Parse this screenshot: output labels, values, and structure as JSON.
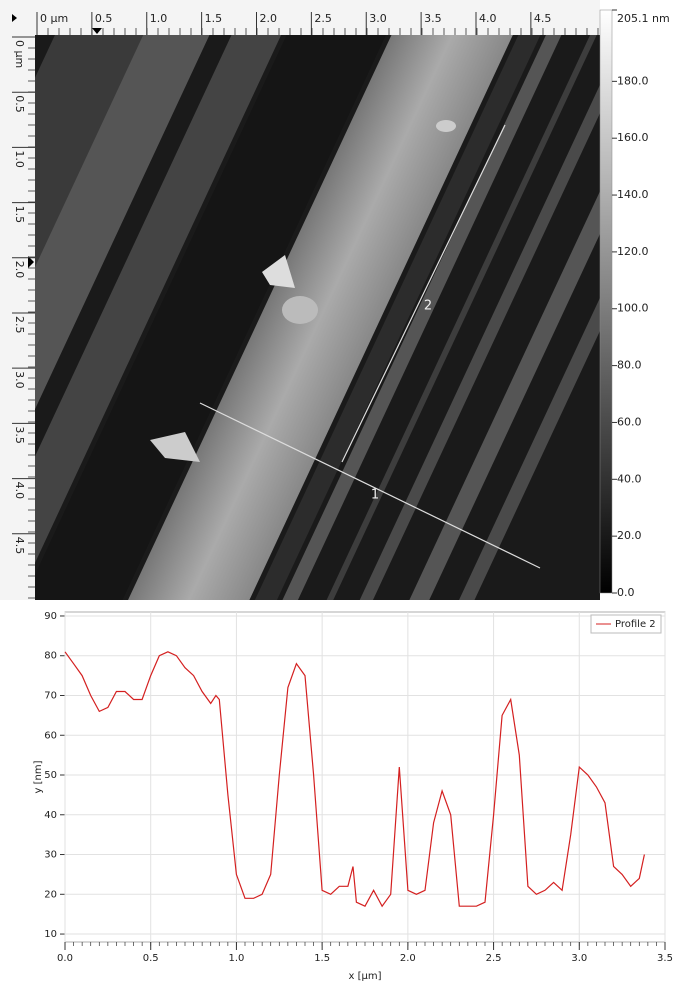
{
  "image": {
    "xlim": [
      0,
      5.13
    ],
    "ylim": [
      0,
      5.1
    ],
    "xticks": [
      {
        "value": 0,
        "label": "0 µm"
      },
      0.5,
      {
        "value": 1,
        "label": "1.0"
      },
      1.5,
      {
        "value": 2,
        "label": "2.0"
      },
      2.5,
      {
        "value": 3,
        "label": "3.0"
      },
      3.5,
      {
        "value": 4,
        "label": "4.0"
      },
      4.5
    ],
    "yticks": [
      {
        "value": 0,
        "label": "0 µm"
      },
      0.5,
      {
        "value": 1,
        "label": "1.0"
      },
      1.5,
      {
        "value": 2,
        "label": "2.0"
      },
      2.5,
      {
        "value": 3,
        "label": "3.0"
      },
      3.5,
      {
        "value": 4,
        "label": "4.0"
      },
      4.5
    ],
    "zlim": [
      0,
      205.1
    ],
    "zticks": [
      {
        "value": 205.1,
        "label": "205.1 nm"
      },
      {
        "value": 180,
        "label": "180.0"
      },
      {
        "value": 160,
        "label": "160.0"
      },
      {
        "value": 140,
        "label": "140.0"
      },
      {
        "value": 120,
        "label": "120.0"
      },
      {
        "value": 100,
        "label": "100.0"
      },
      {
        "value": 80,
        "label": "80.0"
      },
      {
        "value": 60,
        "label": "60.0"
      },
      {
        "value": 40,
        "label": "40.0"
      },
      {
        "value": 20,
        "label": "20.0"
      },
      {
        "value": 0,
        "label": "0.0"
      }
    ],
    "profiles": [
      "1",
      "2"
    ]
  },
  "chart_data": {
    "type": "line",
    "x_label": "x [µm]",
    "y_label": "y [nm]",
    "x": [
      0,
      0.05,
      0.1,
      0.15,
      0.2,
      0.25,
      0.3,
      0.35,
      0.4,
      0.45,
      0.5,
      0.55,
      0.6,
      0.65,
      0.7,
      0.75,
      0.8,
      0.85,
      0.88,
      0.9,
      0.95,
      1.0,
      1.05,
      1.1,
      1.15,
      1.2,
      1.25,
      1.3,
      1.35,
      1.4,
      1.45,
      1.5,
      1.55,
      1.6,
      1.65,
      1.68,
      1.7,
      1.75,
      1.8,
      1.85,
      1.9,
      1.95,
      2.0,
      2.05,
      2.1,
      2.15,
      2.2,
      2.25,
      2.3,
      2.35,
      2.4,
      2.45,
      2.5,
      2.55,
      2.6,
      2.65,
      2.7,
      2.75,
      2.8,
      2.85,
      2.9,
      2.95,
      3.0,
      3.05,
      3.1,
      3.15,
      3.2,
      3.25,
      3.3,
      3.35,
      3.38
    ],
    "series": [
      {
        "name": "Profile 2",
        "color": "#d42020",
        "values": [
          81,
          78,
          75,
          70,
          66,
          67,
          71,
          71,
          69,
          69,
          75,
          80,
          81,
          80,
          77,
          75,
          71,
          68,
          70,
          69,
          45,
          25,
          19,
          19,
          20,
          25,
          50,
          72,
          78,
          75,
          50,
          21,
          20,
          22,
          22,
          27,
          18,
          17,
          21,
          17,
          20,
          52,
          21,
          20,
          21,
          38,
          46,
          40,
          17,
          17,
          17,
          18,
          40,
          65,
          69,
          55,
          22,
          20,
          21,
          23,
          21,
          35,
          52,
          50,
          47,
          43,
          27,
          25,
          22,
          24,
          30
        ]
      }
    ],
    "xlim": [
      0,
      3.5
    ],
    "ylim": [
      8,
      91
    ],
    "xticks": [
      {
        "value": 0,
        "label": "0.0"
      },
      0.5,
      {
        "value": 1,
        "label": "1.0"
      },
      1.5,
      {
        "value": 2,
        "label": "2.0"
      },
      2.5,
      {
        "value": 3,
        "label": "3.0"
      },
      3.5
    ],
    "yticks": [
      10,
      20,
      30,
      40,
      50,
      60,
      70,
      80,
      90
    ],
    "grid": true,
    "legend": "top-right"
  }
}
